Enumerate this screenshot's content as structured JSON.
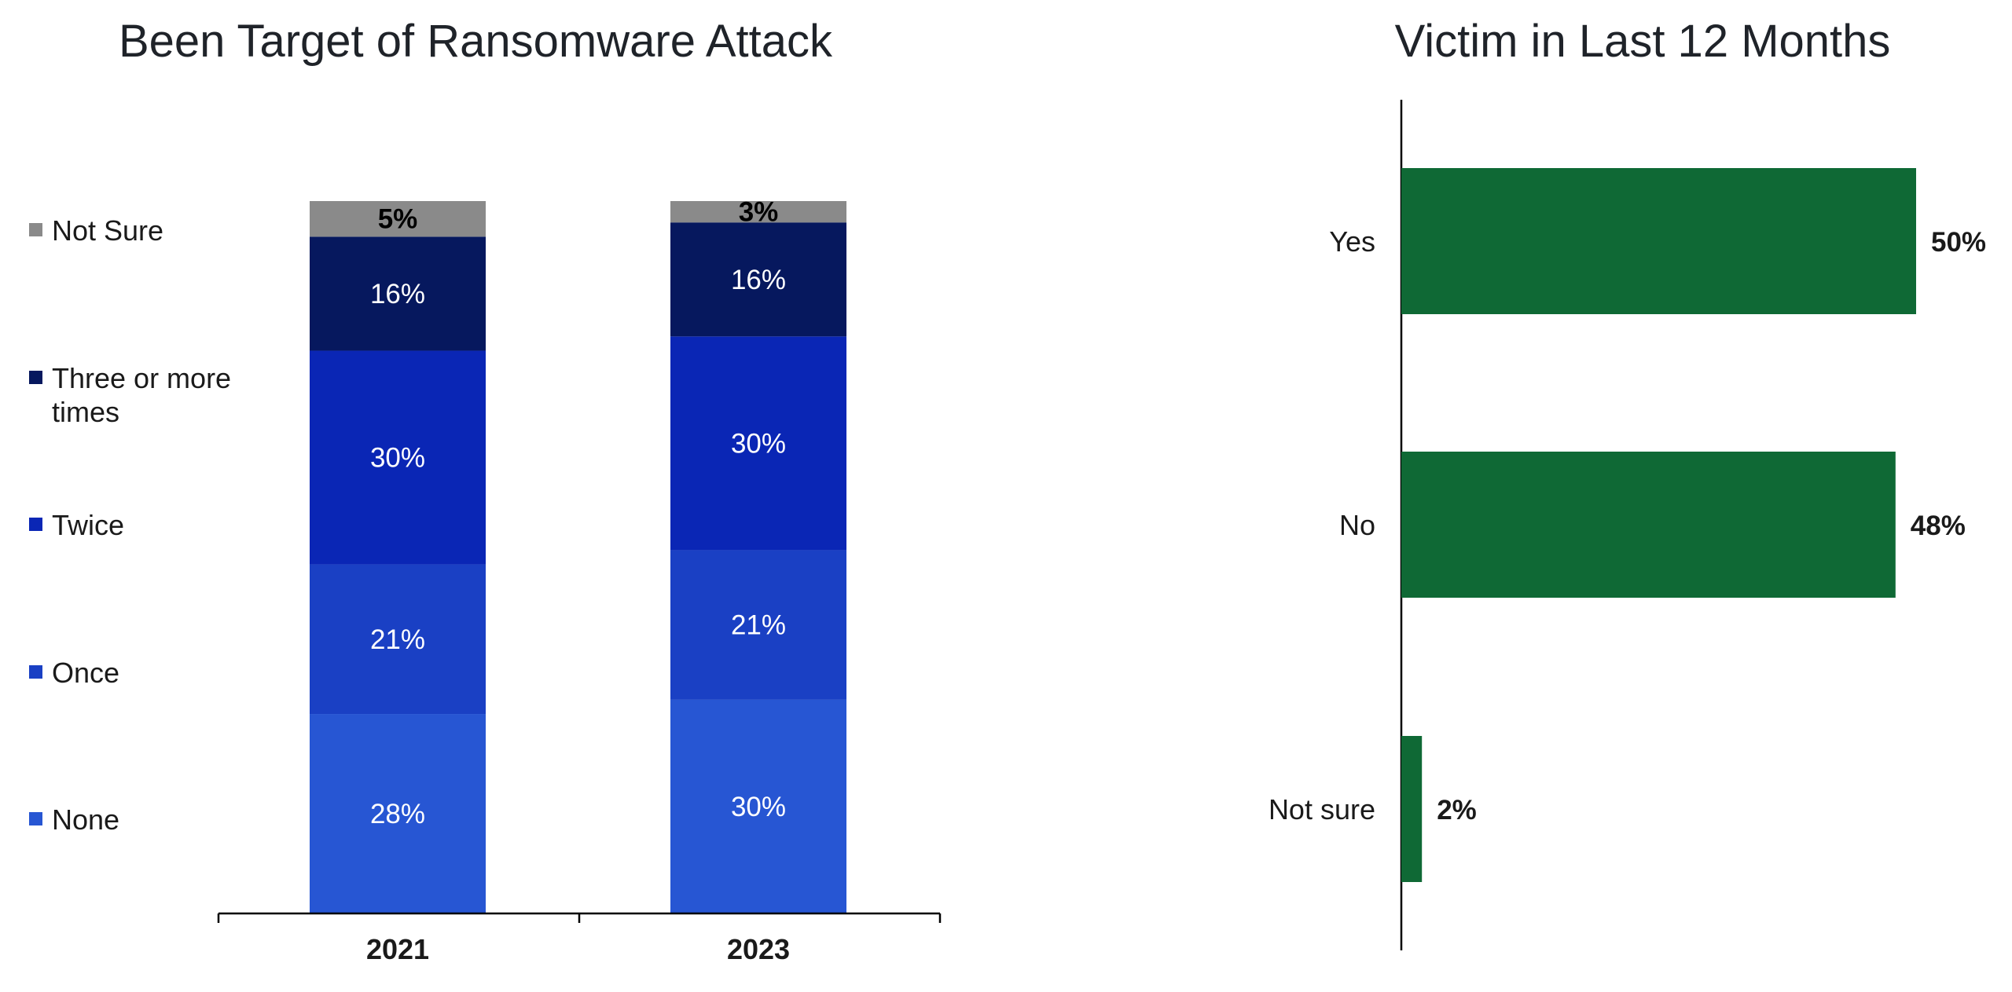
{
  "chart_data": [
    {
      "type": "bar",
      "stacked": true,
      "title": "Been Target of Ransomware Attack",
      "categories": [
        "2021",
        "2023"
      ],
      "series": [
        {
          "name": "None",
          "values": [
            28,
            30
          ],
          "color": "#2756d3",
          "label_color": "#ffffff"
        },
        {
          "name": "Once",
          "values": [
            21,
            21
          ],
          "color": "#1a40c4",
          "label_color": "#ffffff"
        },
        {
          "name": "Twice",
          "values": [
            30,
            30
          ],
          "color": "#0a26b5",
          "label_color": "#ffffff"
        },
        {
          "name": "Three or more times",
          "values": [
            16,
            16
          ],
          "color": "#06185e",
          "label_color": "#ffffff"
        },
        {
          "name": "Not Sure",
          "values": [
            5,
            3
          ],
          "color": "#8a8a8a",
          "label_color": "#000000"
        }
      ],
      "legend_order": [
        "Not Sure",
        "Three or more times",
        "Twice",
        "Once",
        "None"
      ],
      "legend_position": "left",
      "ylim": [
        0,
        100
      ]
    },
    {
      "type": "bar",
      "orientation": "horizontal",
      "title": "Victim in Last 12 Months",
      "categories": [
        "Yes",
        "No",
        "Not sure"
      ],
      "values": [
        50,
        48,
        2
      ],
      "value_labels": [
        "50%",
        "48%",
        "2%"
      ],
      "color": "#0f6935",
      "xlim": [
        0,
        52
      ]
    }
  ]
}
